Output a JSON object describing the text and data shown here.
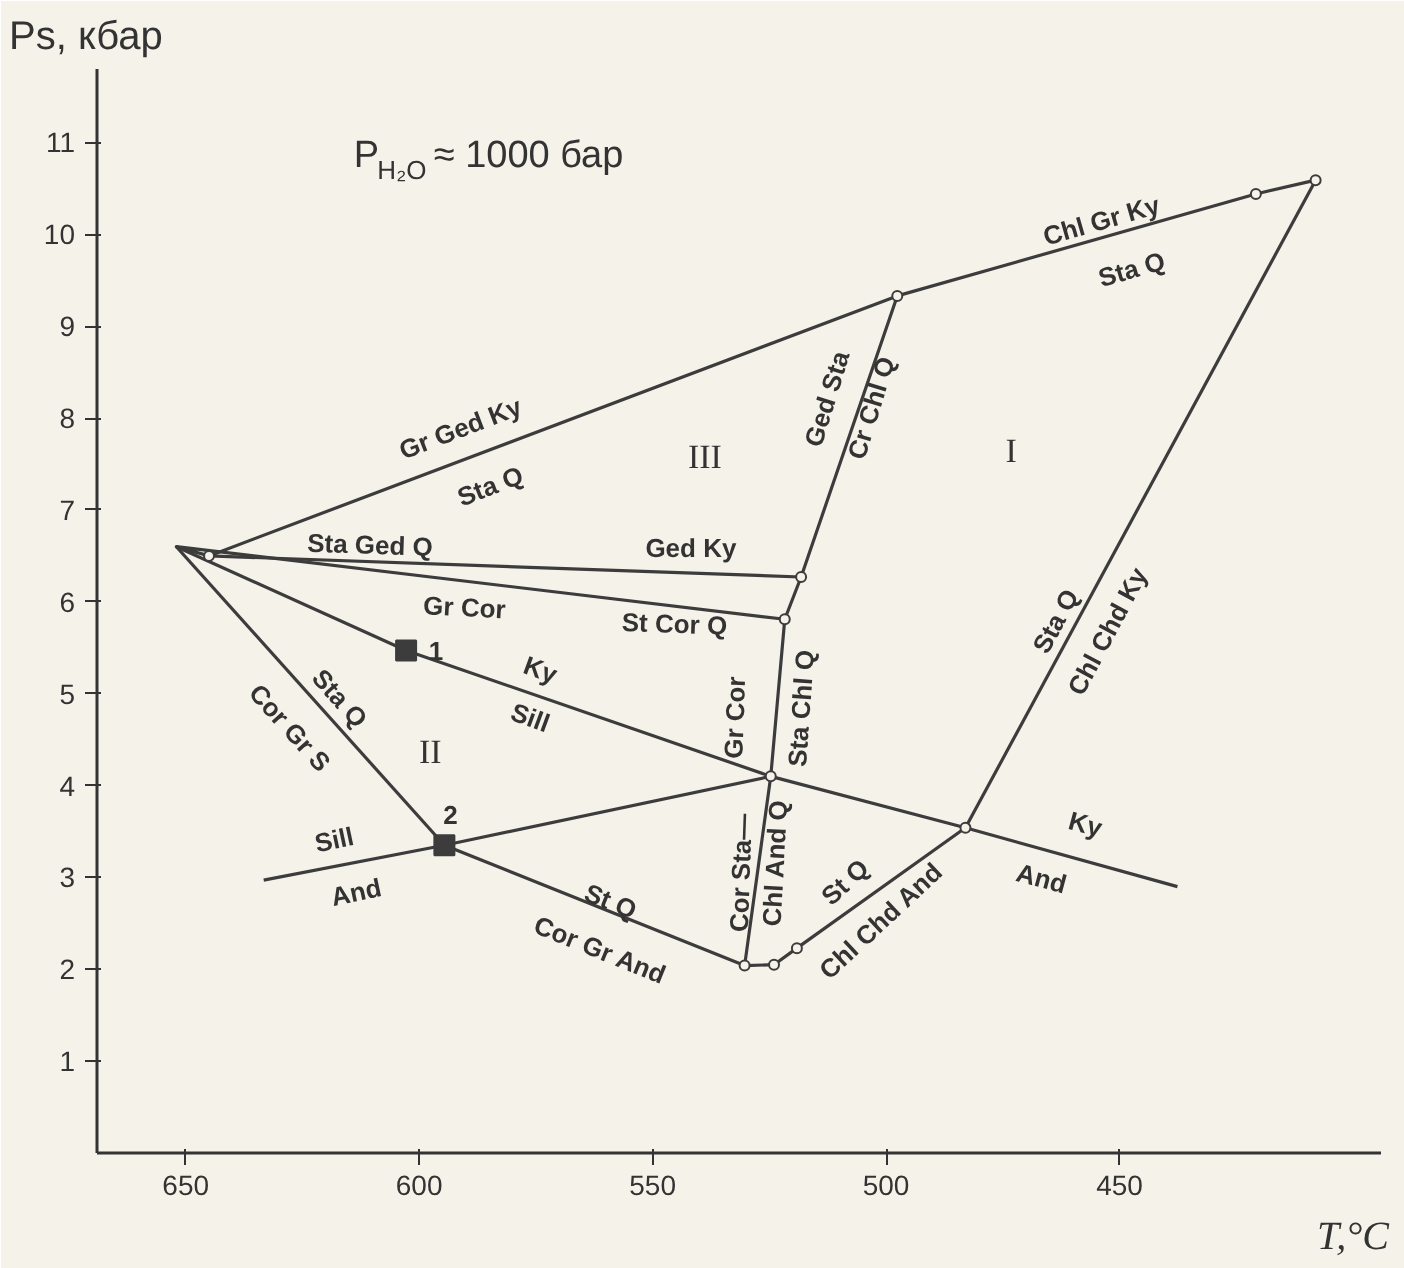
{
  "chart_data": {
    "type": "line",
    "title": "P$_{H₂O}$ ≈ 1000 бар",
    "xlabel": "T,°C",
    "ylabel": "Ps, кбар",
    "xlim": [
      669,
      394
    ],
    "ylim": [
      0,
      11.8
    ],
    "xticks": [
      650,
      600,
      550,
      500,
      450
    ],
    "yticks": [
      1,
      2,
      3,
      4,
      5,
      6,
      7,
      8,
      9,
      10,
      11
    ],
    "grid": false,
    "series": [
      {
        "color": "#3c3c3c",
        "x": [
          645,
          497.6,
          420.8,
          408
        ],
        "values": [
          6.5,
          9.33,
          10.44,
          10.59
        ]
      },
      {
        "color": "#3c3c3c",
        "x": [
          645,
          518.2
        ],
        "values": [
          6.5,
          6.27
        ]
      },
      {
        "color": "#3c3c3c",
        "x": [
          645,
          652,
          521.7
        ],
        "values": [
          6.5,
          6.6,
          5.81
        ]
      },
      {
        "color": "#3c3c3c",
        "x": [
          652,
          602.8,
          524.7,
          483,
          437.6
        ],
        "values": [
          6.6,
          5.47,
          4.1,
          3.54,
          2.9
        ]
      },
      {
        "color": "#3c3c3c",
        "x": [
          652,
          594.6
        ],
        "values": [
          6.6,
          3.35
        ]
      },
      {
        "color": "#3c3c3c",
        "x": [
          633.3,
          594.6,
          524.7
        ],
        "values": [
          2.97,
          3.35,
          4.1
        ]
      },
      {
        "color": "#3c3c3c",
        "x": [
          594.6,
          530.3
        ],
        "values": [
          3.35,
          2.04
        ]
      },
      {
        "color": "#3c3c3c",
        "x": [
          530.3,
          524,
          519.1,
          483
        ],
        "values": [
          2.04,
          2.05,
          2.23,
          3.54
        ]
      },
      {
        "color": "#3c3c3c",
        "x": [
          497.6,
          518.2,
          521.7,
          524.7,
          530.3
        ],
        "values": [
          9.33,
          6.27,
          5.81,
          4.1,
          2.04
        ]
      },
      {
        "color": "#3c3c3c",
        "x": [
          483,
          408
        ],
        "values": [
          3.54,
          10.59
        ]
      },
      {
        "type": "scatter",
        "marker": "circle",
        "color": "#3c3c3c",
        "x": [
          645,
          497.6,
          420.8,
          408,
          518.2,
          521.7,
          524.7,
          530.3,
          524,
          519.1,
          483
        ],
        "values": [
          6.5,
          9.33,
          10.44,
          10.59,
          6.27,
          5.81,
          4.1,
          2.04,
          2.05,
          2.23,
          3.54
        ]
      },
      {
        "type": "scatter",
        "marker": "square",
        "color": "#3c3c3c",
        "x": [
          602.8,
          594.6
        ],
        "values": [
          5.47,
          3.35
        ]
      }
    ],
    "annotations": [
      "Gr Ged Ky",
      "Sta Q",
      "Chl Gr Ky",
      "Sta Q",
      "Sta Ged Q",
      "Ged Ky",
      "St Cor Q",
      "Gr Cor",
      "Ky",
      "Sill",
      "Sta Q",
      "Cor Gr S",
      "Sill",
      "And",
      "St Q",
      "Cor Gr And",
      "Gr Cor",
      "Sta Chl Q",
      "Cor Sta—",
      "Chl And Q",
      "St Q",
      "Chl Chd And",
      "Ky",
      "And",
      "Ged Sta",
      "Cr Chl Q",
      "Sta Q",
      "Chl Chd Ky",
      "1",
      "2",
      "III",
      "I",
      "II"
    ]
  }
}
